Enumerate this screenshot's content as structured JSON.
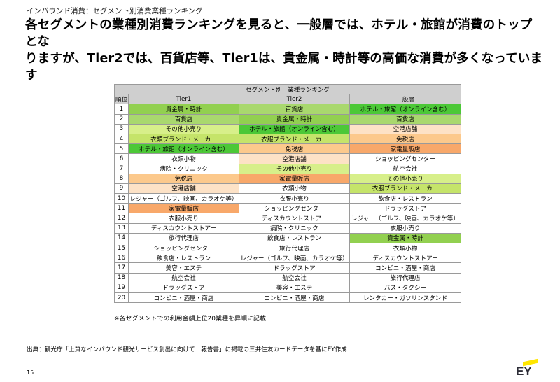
{
  "header": {
    "tag": "インバウンド消費：セグメント別消費業種ランキング",
    "headline_line1": "各セグメントの業種別消費ランキングを見ると、一般層では、ホテル・旅館が消費のトップとな",
    "headline_line2": "りますが、Tier2では、百貨店等、Tier1は、貴金属・時計等の高価な消費が多くなっています"
  },
  "table": {
    "title": "セグメント別　業種ランキング",
    "columns": [
      "順位",
      "Tier1",
      "Tier2",
      "一般層"
    ],
    "rows": [
      {
        "rank": "1",
        "tier1": "貴金属・時計",
        "tier2": "百貨店",
        "general": "ホテル・旅館（オンライン含む）"
      },
      {
        "rank": "2",
        "tier1": "百貨店",
        "tier2": "貴金属・時計",
        "general": "百貨店"
      },
      {
        "rank": "3",
        "tier1": "その他小売り",
        "tier2": "ホテル・旅館（オンライン含む）",
        "general": "空港店舗"
      },
      {
        "rank": "4",
        "tier1": "衣類ブランド・メーカー",
        "tier2": "衣服ブランド・メーカー",
        "general": "免税店"
      },
      {
        "rank": "5",
        "tier1": "ホテル・旅館（オンライン含む）",
        "tier2": "免税店",
        "general": "家電量販店"
      },
      {
        "rank": "6",
        "tier1": "衣類小物",
        "tier2": "空港店舗",
        "general": "ショッピングセンター"
      },
      {
        "rank": "7",
        "tier1": "病院・クリニック",
        "tier2": "その他小売り",
        "general": "航空会社"
      },
      {
        "rank": "8",
        "tier1": "免税店",
        "tier2": "家電量販店",
        "general": "その他小売り"
      },
      {
        "rank": "9",
        "tier1": "空港店舗",
        "tier2": "衣類小物",
        "general": "衣服ブランド・メーカー"
      },
      {
        "rank": "10",
        "tier1": "レジャー（ゴルフ、映画、カラオケ等）",
        "tier2": "衣服小売り",
        "general": "飲食店・レストラン"
      },
      {
        "rank": "11",
        "tier1": "家電量販店",
        "tier2": "ショッピングセンター",
        "general": "ドラッグストア"
      },
      {
        "rank": "12",
        "tier1": "衣服小売り",
        "tier2": "ディスカウントストアー",
        "general": "レジャー（ゴルフ、映画、カラオケ等）"
      },
      {
        "rank": "13",
        "tier1": "ディスカウントストアー",
        "tier2": "病院・クリニック",
        "general": "衣服小売り"
      },
      {
        "rank": "14",
        "tier1": "旅行代理店",
        "tier2": "飲食店・レストラン",
        "general": "貴金属・時計"
      },
      {
        "rank": "15",
        "tier1": "ショッピングセンター",
        "tier2": "旅行代理店",
        "general": "衣類小物"
      },
      {
        "rank": "16",
        "tier1": "飲食店・レストラン",
        "tier2": "レジャー（ゴルフ、映画、カラオケ等）",
        "general": "ディスカウントストアー"
      },
      {
        "rank": "17",
        "tier1": "美容・エステ",
        "tier2": "ドラッグストア",
        "general": "コンビニ・酒屋・商店"
      },
      {
        "rank": "18",
        "tier1": "航空会社",
        "tier2": "航空会社",
        "general": "旅行代理店"
      },
      {
        "rank": "19",
        "tier1": "ドラッグストア",
        "tier2": "美容・エステ",
        "general": "バス・タクシー"
      },
      {
        "rank": "20",
        "tier1": "コンビニ・酒屋・商店",
        "tier2": "コンビニ・酒屋・商店",
        "general": "レンタカー・ガソリンスタンド"
      }
    ],
    "category_colors": {
      "貴金属・時計": "#92d050",
      "百貨店": "#a9d86e",
      "ホテル・旅館（オンライン含む）": "#4cc837",
      "その他小売り": "#d7ef8a",
      "衣類ブランド・メーカー": "#c5e46a",
      "衣服ブランド・メーカー": "#c5e46a",
      "免税店": "#fcc98c",
      "空港店舗": "#fde2c6",
      "家電量販店": "#f8a86a"
    }
  },
  "note": "※各セグメントでの利用金額上位20業種を昇順に記載",
  "source": "出典：観光庁「上質なインバウンド観光サービス創出に向けて　報告書」に掲載の三井住友カードデータを基にEY作成",
  "page_number": "15",
  "logo": {
    "text": "EY",
    "accent": "#ffe600"
  }
}
